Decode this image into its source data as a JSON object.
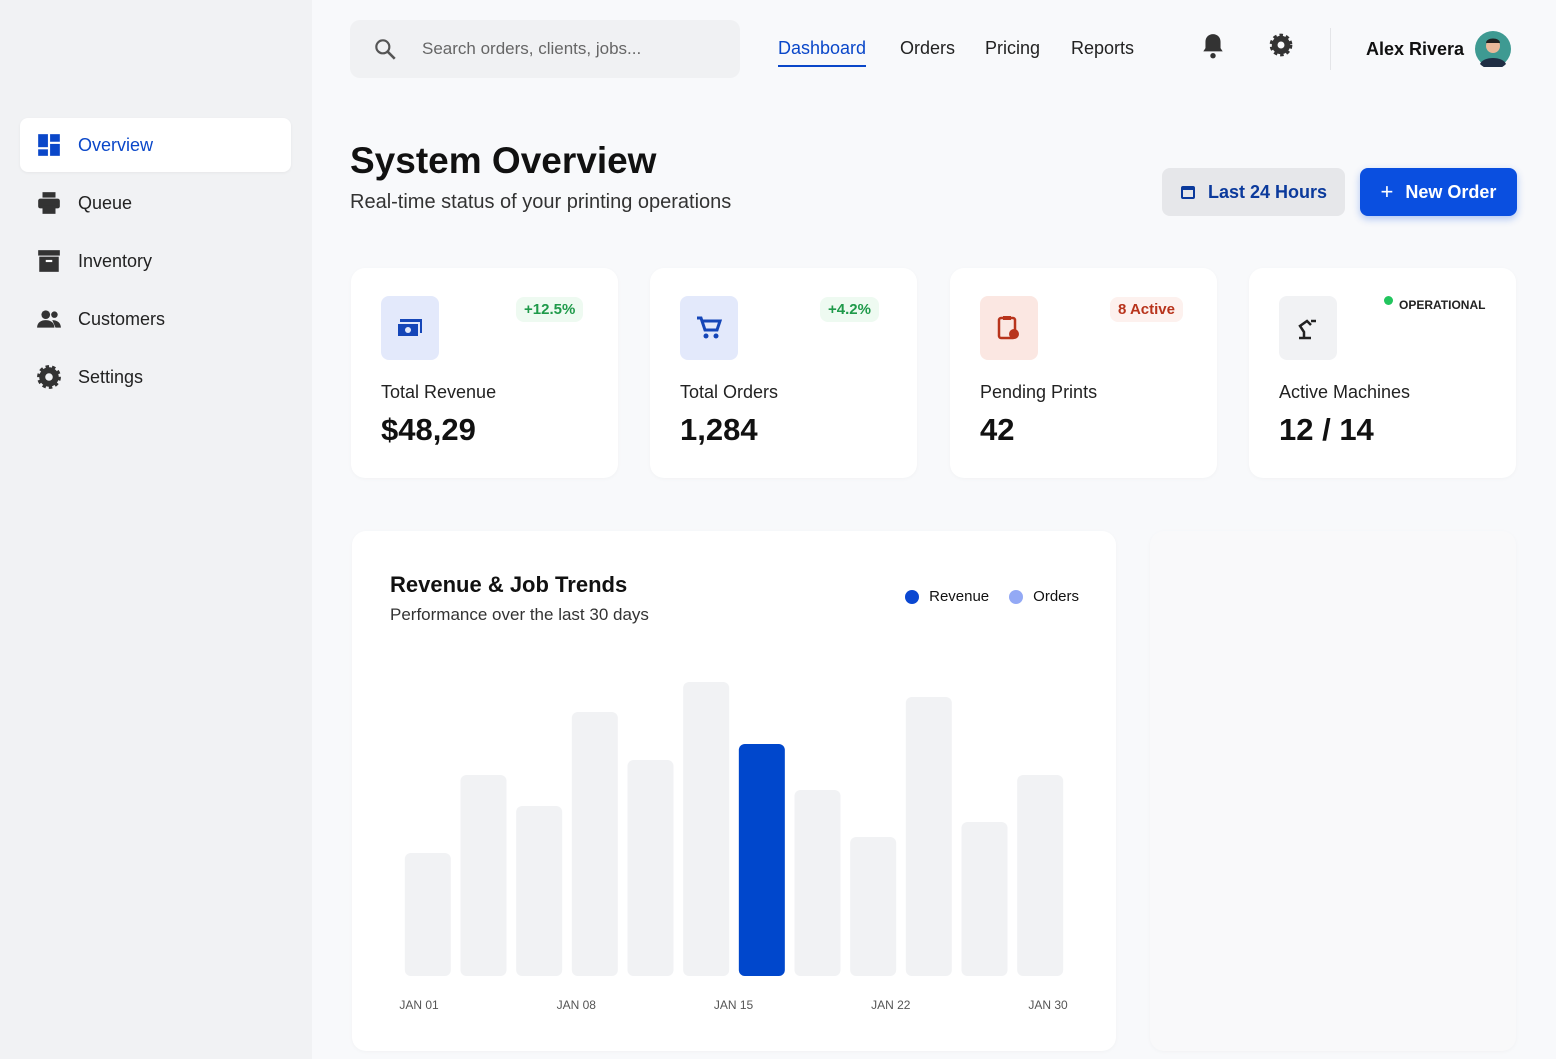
{
  "search_placeholder": "Search orders, clients, jobs...",
  "top_nav": [
    "Dashboard",
    "Orders",
    "Pricing",
    "Reports"
  ],
  "user": {
    "name": "Alex Rivera"
  },
  "sidebar": [
    "Overview",
    "Queue",
    "Inventory",
    "Customers",
    "Settings"
  ],
  "header": {
    "title": "System Overview",
    "subtitle": "Real-time status of your printing operations",
    "range_button": "Last 24 Hours",
    "new_order_button": "New Order"
  },
  "stats": [
    {
      "label": "Total Revenue",
      "value": "$48,29",
      "badge": "+12.5%"
    },
    {
      "label": "Total Orders",
      "value": "1,284",
      "badge": "+4.2%"
    },
    {
      "label": "Pending Prints",
      "value": "42",
      "badge": "8 Active"
    },
    {
      "label": "Active Machines",
      "value": "12 / 14",
      "badge": "OPERATIONAL"
    }
  ],
  "chart": {
    "type": "bar",
    "title": "Revenue & Job Trends",
    "subtitle": "Performance over the last 30 days",
    "legend": [
      {
        "name": "Revenue",
        "color": "#0a47d1"
      },
      {
        "name": "Orders",
        "color": "#93a9f5"
      }
    ],
    "x_labels": [
      "JAN 01",
      "JAN 08",
      "JAN 15",
      "JAN 22",
      "JAN 30"
    ],
    "values": [
      123,
      201,
      170,
      264,
      216,
      294,
      232,
      186,
      139,
      279,
      154,
      201
    ],
    "color": "#f1f2f4",
    "highlight_color": "#0047cc",
    "highlight_index": 6
  }
}
